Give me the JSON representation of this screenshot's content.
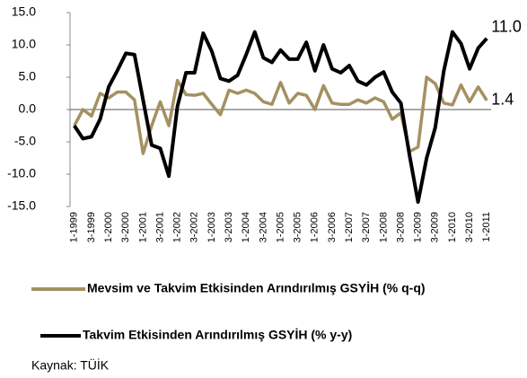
{
  "chart_data": {
    "type": "line",
    "categories": [
      "1-1999",
      null,
      "3-1999",
      null,
      "1-2000",
      null,
      "3-2000",
      null,
      "1-2001",
      null,
      "3-2001",
      null,
      "1-2002",
      null,
      "3-2002",
      null,
      "1-2003",
      null,
      "3-2003",
      null,
      "1-2004",
      null,
      "3-2004",
      null,
      "1-2005",
      null,
      "3-2005",
      null,
      "1-2006",
      null,
      "3-2006",
      null,
      "1-2007",
      null,
      "3-2007",
      null,
      "1-2008",
      null,
      "3-2008",
      null,
      "1-2009",
      null,
      "3-2009",
      null,
      "1-2010",
      null,
      "3-2010",
      null,
      "1-2011"
    ],
    "series": [
      {
        "name": "Mevsim ve Takvim Etkisinden Arındırılmış GSYİH (% q-q)",
        "color": "#a39161",
        "values": [
          -2.5,
          0,
          -1,
          2.5,
          1.8,
          2.7,
          2.7,
          1.5,
          -6.8,
          -2.5,
          1.2,
          -2.5,
          4.5,
          2.3,
          2.2,
          2.5,
          0.8,
          -0.8,
          3,
          2.5,
          3,
          2.5,
          1.2,
          0.8,
          4.2,
          1,
          2.5,
          2.2,
          0,
          3.7,
          1,
          0.8,
          0.8,
          1.5,
          1,
          1.8,
          1.2,
          -1.5,
          -0.5,
          -6.5,
          -5.8,
          5,
          4,
          1,
          0.7,
          3.8,
          1.2,
          3.5,
          1.4
        ],
        "value_labels": [
          null,
          null,
          null,
          null,
          null,
          null,
          null,
          null,
          null,
          null,
          null,
          null,
          null,
          null,
          null,
          null,
          null,
          null,
          null,
          null,
          null,
          null,
          null,
          null,
          null,
          null,
          null,
          null,
          null,
          null,
          null,
          null,
          null,
          null,
          null,
          null,
          null,
          null,
          null,
          null,
          null,
          null,
          null,
          null,
          null,
          null,
          null,
          null,
          "1.4"
        ]
      },
      {
        "name": "Takvim Etkisinden Arındırılmış GSYİH (% y-y)",
        "color": "#000000",
        "values": [
          -2.5,
          -4.5,
          -4.2,
          -1.5,
          3.5,
          6,
          8.7,
          8.5,
          1.5,
          -5.5,
          -6,
          -10.3,
          0.5,
          5.7,
          5.7,
          11.8,
          9,
          4.8,
          4.4,
          5.3,
          8.5,
          12,
          8,
          7.3,
          9.2,
          7.8,
          7.8,
          10.4,
          6,
          10,
          6.3,
          5.7,
          6.8,
          4.4,
          3.8,
          5,
          5.8,
          2.7,
          1,
          -7,
          -14.3,
          -7.5,
          -2.8,
          6,
          12,
          10.2,
          6.3,
          9.5,
          11.0
        ],
        "value_labels": [
          null,
          null,
          null,
          null,
          null,
          null,
          null,
          null,
          null,
          null,
          null,
          null,
          null,
          null,
          null,
          null,
          null,
          null,
          null,
          null,
          null,
          null,
          null,
          null,
          null,
          null,
          null,
          null,
          null,
          null,
          null,
          null,
          null,
          null,
          null,
          null,
          null,
          null,
          null,
          null,
          null,
          null,
          null,
          null,
          null,
          null,
          null,
          null,
          "11.0"
        ]
      }
    ],
    "ylim": [
      -15,
      15
    ],
    "yticks": [
      {
        "value": -15,
        "label": "-15.0"
      },
      {
        "value": -10,
        "label": "-10.0"
      },
      {
        "value": -5,
        "label": "-5.0"
      },
      {
        "value": 0,
        "label": "0.0"
      },
      {
        "value": 5,
        "label": "5.0"
      },
      {
        "value": 10,
        "label": "10.0"
      },
      {
        "value": 15,
        "label": "15.0"
      }
    ],
    "source": "Kaynak: TÜİK"
  }
}
